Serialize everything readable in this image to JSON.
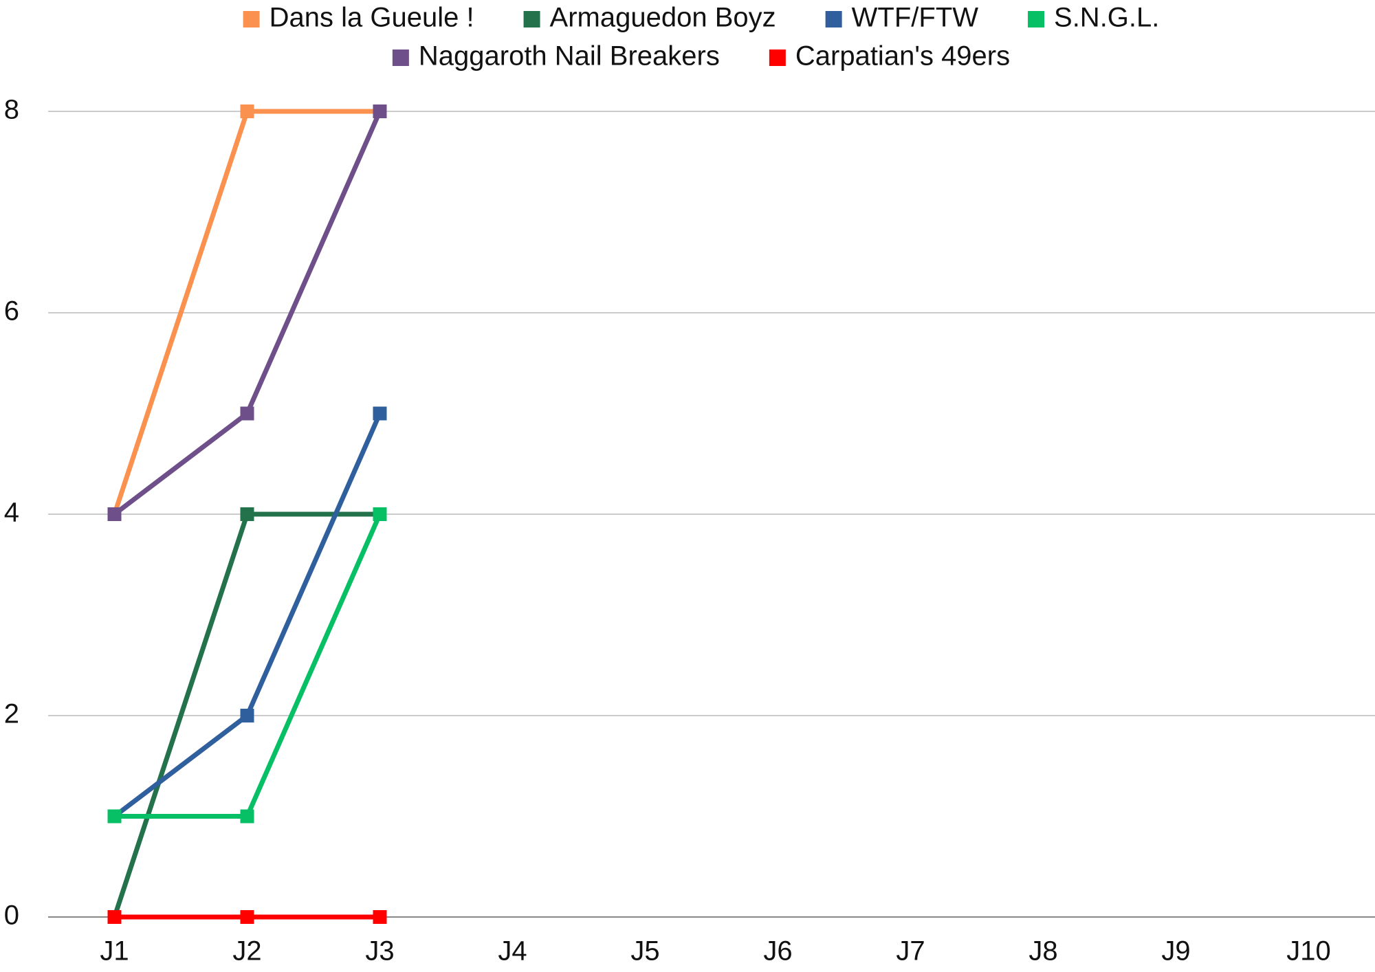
{
  "chart_data": {
    "type": "line",
    "categories": [
      "J1",
      "J2",
      "J3",
      "J4",
      "J5",
      "J6",
      "J7",
      "J8",
      "J9",
      "J10"
    ],
    "series": [
      {
        "name": "Dans la Gueule !",
        "color": "#fb914e",
        "values": [
          4,
          8,
          8,
          null,
          null,
          null,
          null,
          null,
          null,
          null
        ]
      },
      {
        "name": "Armaguedon Boyz",
        "color": "#23724b",
        "values": [
          0,
          4,
          4,
          null,
          null,
          null,
          null,
          null,
          null,
          null
        ]
      },
      {
        "name": "WTF/FTW",
        "color": "#2f5f9c",
        "values": [
          1,
          2,
          5,
          null,
          null,
          null,
          null,
          null,
          null,
          null
        ]
      },
      {
        "name": "S.N.G.L.",
        "color": "#07bf64",
        "values": [
          1,
          1,
          4,
          null,
          null,
          null,
          null,
          null,
          null,
          null
        ]
      },
      {
        "name": "Naggaroth Nail Breakers",
        "color": "#6e4f89",
        "values": [
          4,
          5,
          8,
          null,
          null,
          null,
          null,
          null,
          null,
          null
        ]
      },
      {
        "name": "Carpatian's 49ers",
        "color": "#ff0000",
        "values": [
          0,
          0,
          0,
          null,
          null,
          null,
          null,
          null,
          null,
          null
        ]
      }
    ],
    "ylim": [
      0,
      8
    ],
    "yticks": [
      0,
      2,
      4,
      6,
      8
    ],
    "grid": true,
    "legend": "top"
  }
}
